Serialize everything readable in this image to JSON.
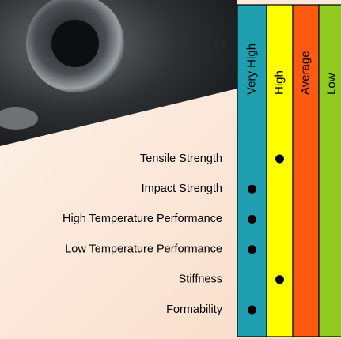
{
  "columns": [
    "Very High",
    "High",
    "Average",
    "Low"
  ],
  "rows": [
    {
      "label": "Tensile Strength",
      "rating": "High"
    },
    {
      "label": "Impact Strength",
      "rating": "Very High"
    },
    {
      "label": "High Temperature Performance",
      "rating": "Very High"
    },
    {
      "label": "Low Temperature Performance",
      "rating": "Very High"
    },
    {
      "label": "Stiffness",
      "rating": "High"
    },
    {
      "label": "Formability",
      "rating": "Very High"
    }
  ]
}
